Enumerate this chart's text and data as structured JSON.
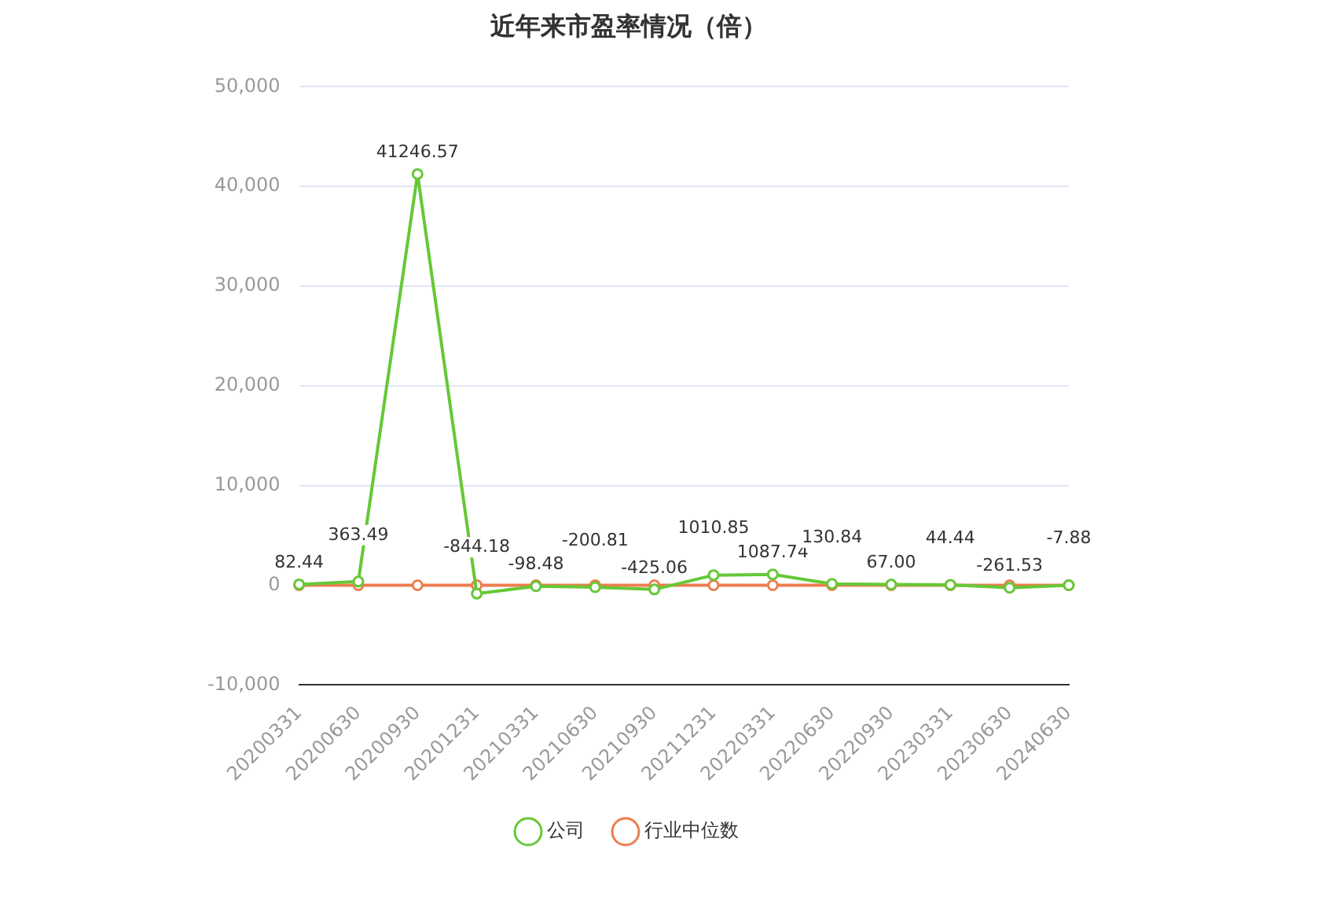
{
  "chart_data": {
    "type": "line",
    "title": "近年来市盈率情况（倍）",
    "categories": [
      "20200331",
      "20200630",
      "20200930",
      "20201231",
      "20210331",
      "20210630",
      "20210930",
      "20211231",
      "20220331",
      "20220630",
      "20220930",
      "20230331",
      "20230630",
      "20240630"
    ],
    "series": [
      {
        "name": "公司",
        "color": "#66c837",
        "values": [
          82.44,
          363.49,
          41246.57,
          -844.18,
          -98.48,
          -200.81,
          -425.06,
          1010.85,
          1087.74,
          130.84,
          67.0,
          44.44,
          -261.53,
          -7.88
        ],
        "value_labels": [
          "82.44",
          "363.49",
          "41246.57",
          "-844.18",
          "-98.48",
          "-200.81",
          "-425.06",
          "1010.85",
          "1087.74",
          "130.84",
          "67.00",
          "44.44",
          "-261.53",
          "-7.88"
        ]
      },
      {
        "name": "行业中位数",
        "color": "#ee7d4f",
        "values": [
          0,
          0,
          0,
          0,
          0,
          0,
          0,
          0,
          0,
          0,
          0,
          0,
          0,
          0
        ]
      }
    ],
    "ylim": [
      -10000,
      50000
    ],
    "yticks": [
      {
        "value": -10000,
        "label": "-10,000"
      },
      0,
      {
        "value": 10000,
        "label": "10,000"
      },
      {
        "value": 20000,
        "label": "20,000"
      },
      {
        "value": 30000,
        "label": "30,000"
      },
      {
        "value": 40000,
        "label": "40,000"
      },
      {
        "value": 50000,
        "label": "50,000"
      }
    ],
    "grid": "y",
    "legend": "bottom",
    "marker": "circle",
    "line_style": "solid"
  }
}
